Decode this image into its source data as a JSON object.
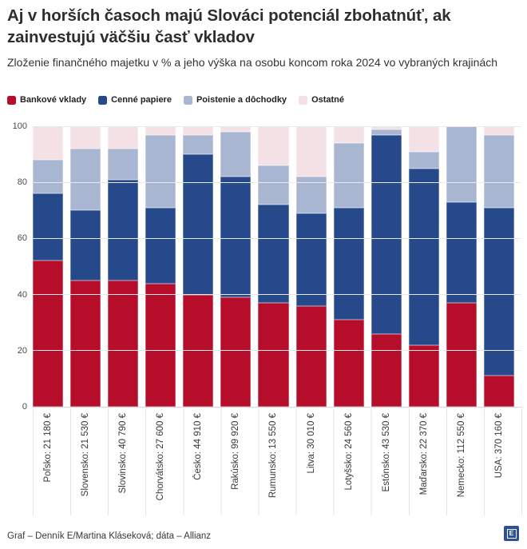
{
  "title": "Aj v horších časoch majú Slováci potenciál zbohatnúť, ak zainvestujú väčšiu časť vkladov",
  "subtitle": "Zloženie finančného majetku v % a jeho výška na osobu koncom roka 2024 vo vybraných krajinách",
  "legend": [
    {
      "label": "Bankové vklady",
      "color": "#b60d2b"
    },
    {
      "label": "Cenné papiere",
      "color": "#25498b"
    },
    {
      "label": "Poistenie a dôchodky",
      "color": "#a9b6d2"
    },
    {
      "label": "Ostatné",
      "color": "#f4e1e5"
    }
  ],
  "chart_data": {
    "type": "bar",
    "stacked": true,
    "orientation": "vertical",
    "categories": [
      "Poľsko: 21 180 €",
      "Slovensko: 21 530 €",
      "Slovinsko: 40 790 €",
      "Chorvátsko: 27 600 €",
      "Česko: 44 910 €",
      "Rakúsko: 99 920 €",
      "Rumunsko: 13 550 €",
      "Litva: 30 010 €",
      "Lotyšsko: 24 560 €",
      "Estónsko: 43 530 €",
      "Maďarsko: 22 370 €",
      "Nemecko: 112 550 €",
      "USA: 370 160 €"
    ],
    "series": [
      {
        "name": "Bankové vklady",
        "color": "#b60d2b",
        "values": [
          52,
          45,
          45,
          44,
          40,
          39,
          37,
          36,
          31,
          26,
          22,
          37,
          11
        ]
      },
      {
        "name": "Cenné papiere",
        "color": "#25498b",
        "values": [
          24,
          25,
          36,
          27,
          50,
          43,
          35,
          33,
          40,
          71,
          63,
          36,
          60
        ]
      },
      {
        "name": "Poistenie a dôchodky",
        "color": "#a9b6d2",
        "values": [
          12,
          22,
          11,
          26,
          7,
          16,
          14,
          13,
          23,
          2,
          6,
          27,
          26
        ]
      },
      {
        "name": "Ostatné",
        "color": "#f4e1e5",
        "values": [
          12,
          8,
          8,
          3,
          3,
          2,
          14,
          18,
          6,
          1,
          9,
          0,
          3
        ]
      }
    ],
    "ylabel": "",
    "xlabel": "",
    "ylim": [
      0,
      100
    ],
    "y_ticks": [
      0,
      20,
      40,
      60,
      80,
      100
    ],
    "grid": true,
    "legend_position": "top"
  },
  "footer": {
    "credit": "Graf – Denník E/Martina Kláseková; dáta – Allianz",
    "logo_letter": "E"
  }
}
